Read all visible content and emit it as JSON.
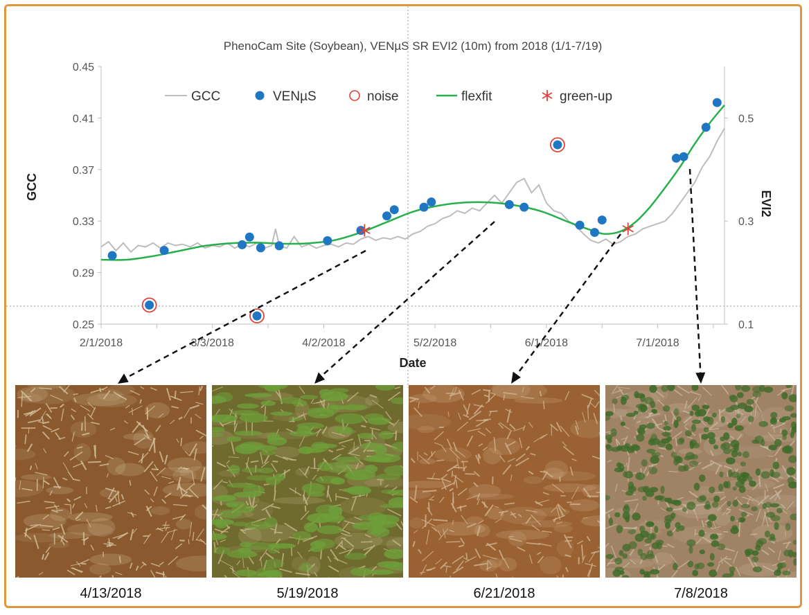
{
  "chart_data": {
    "type": "scatter",
    "title": "PhenoCam Site (Soybean), VENµS SR EVI2 (10m) from 2018 (1/1-7/19)",
    "xlabel": "Date",
    "ylabel": "GCC",
    "y2label": "EVI2",
    "xlim": [
      "2018-02-01",
      "2018-07-19"
    ],
    "x_ticks": [
      "2/1/2018",
      "3/3/2018",
      "4/2/2018",
      "5/2/2018",
      "6/1/2018",
      "7/1/2018"
    ],
    "ylim": [
      0.25,
      0.45
    ],
    "y_ticks": [
      "0.45",
      "0.41",
      "0.37",
      "0.33",
      "0.29",
      "0.25"
    ],
    "y2lim": [
      0.1,
      0.6
    ],
    "y2_ticks": [
      "0.5",
      "0.3",
      "0.1"
    ],
    "grid": false,
    "legend": [
      "GCC",
      "VENµS",
      "noise",
      "flexfit",
      "green-up"
    ],
    "legend_position": "top",
    "colors": {
      "gcc": "#bdbdbd",
      "venus": "#1f77c4",
      "noise": "#e0413b",
      "flexfit": "#25b04a",
      "greenup": "#e0413b",
      "arrows": "#111111"
    },
    "series": [
      {
        "name": "GCC",
        "axis": "left",
        "points": [
          [
            "2018-02-01",
            0.31
          ],
          [
            "2018-02-03",
            0.314
          ],
          [
            "2018-02-05",
            0.307
          ],
          [
            "2018-02-07",
            0.313
          ],
          [
            "2018-02-09",
            0.306
          ],
          [
            "2018-02-11",
            0.311
          ],
          [
            "2018-02-13",
            0.31
          ],
          [
            "2018-02-15",
            0.313
          ],
          [
            "2018-02-17",
            0.309
          ],
          [
            "2018-02-19",
            0.313
          ],
          [
            "2018-02-21",
            0.311
          ],
          [
            "2018-02-23",
            0.312
          ],
          [
            "2018-02-25",
            0.31
          ],
          [
            "2018-02-27",
            0.313
          ],
          [
            "2018-03-01",
            0.309
          ],
          [
            "2018-03-03",
            0.311
          ],
          [
            "2018-03-05",
            0.31
          ],
          [
            "2018-03-07",
            0.313
          ],
          [
            "2018-03-09",
            0.309
          ],
          [
            "2018-03-11",
            0.312
          ],
          [
            "2018-03-13",
            0.31
          ],
          [
            "2018-03-15",
            0.313
          ],
          [
            "2018-03-17",
            0.309
          ],
          [
            "2018-03-19",
            0.311
          ],
          [
            "2018-03-20",
            0.324
          ],
          [
            "2018-03-21",
            0.311
          ],
          [
            "2018-03-23",
            0.309
          ],
          [
            "2018-03-25",
            0.318
          ],
          [
            "2018-03-27",
            0.31
          ],
          [
            "2018-03-29",
            0.312
          ],
          [
            "2018-03-31",
            0.309
          ],
          [
            "2018-04-02",
            0.311
          ],
          [
            "2018-04-04",
            0.312
          ],
          [
            "2018-04-06",
            0.31
          ],
          [
            "2018-04-08",
            0.313
          ],
          [
            "2018-04-10",
            0.312
          ],
          [
            "2018-04-12",
            0.316
          ],
          [
            "2018-04-14",
            0.318
          ],
          [
            "2018-04-16",
            0.315
          ],
          [
            "2018-04-18",
            0.317
          ],
          [
            "2018-04-20",
            0.316
          ],
          [
            "2018-04-22",
            0.318
          ],
          [
            "2018-04-24",
            0.316
          ],
          [
            "2018-04-26",
            0.32
          ],
          [
            "2018-04-28",
            0.322
          ],
          [
            "2018-04-30",
            0.326
          ],
          [
            "2018-05-02",
            0.328
          ],
          [
            "2018-05-04",
            0.332
          ],
          [
            "2018-05-06",
            0.334
          ],
          [
            "2018-05-08",
            0.338
          ],
          [
            "2018-05-10",
            0.336
          ],
          [
            "2018-05-12",
            0.34
          ],
          [
            "2018-05-14",
            0.338
          ],
          [
            "2018-05-16",
            0.344
          ],
          [
            "2018-05-18",
            0.35
          ],
          [
            "2018-05-20",
            0.344
          ],
          [
            "2018-05-22",
            0.352
          ],
          [
            "2018-05-24",
            0.36
          ],
          [
            "2018-05-26",
            0.363
          ],
          [
            "2018-05-28",
            0.352
          ],
          [
            "2018-05-30",
            0.358
          ],
          [
            "2018-06-01",
            0.344
          ],
          [
            "2018-06-03",
            0.338
          ],
          [
            "2018-06-05",
            0.336
          ],
          [
            "2018-06-07",
            0.33
          ],
          [
            "2018-06-09",
            0.326
          ],
          [
            "2018-06-11",
            0.32
          ],
          [
            "2018-06-13",
            0.315
          ],
          [
            "2018-06-15",
            0.313
          ],
          [
            "2018-06-17",
            0.316
          ],
          [
            "2018-06-19",
            0.312
          ],
          [
            "2018-06-21",
            0.314
          ],
          [
            "2018-06-23",
            0.318
          ],
          [
            "2018-06-25",
            0.32
          ],
          [
            "2018-06-27",
            0.324
          ],
          [
            "2018-06-29",
            0.326
          ],
          [
            "2018-07-01",
            0.328
          ],
          [
            "2018-07-03",
            0.33
          ],
          [
            "2018-07-05",
            0.336
          ],
          [
            "2018-07-07",
            0.344
          ],
          [
            "2018-07-09",
            0.352
          ],
          [
            "2018-07-11",
            0.36
          ],
          [
            "2018-07-13",
            0.372
          ],
          [
            "2018-07-15",
            0.38
          ],
          [
            "2018-07-17",
            0.392
          ],
          [
            "2018-07-19",
            0.402
          ]
        ]
      },
      {
        "name": "VENµS",
        "axis": "right",
        "points": [
          [
            "2018-02-04",
            0.233
          ],
          [
            "2018-02-14",
            0.137
          ],
          [
            "2018-02-18",
            0.243
          ],
          [
            "2018-03-11",
            0.254
          ],
          [
            "2018-03-13",
            0.269
          ],
          [
            "2018-03-15",
            0.116
          ],
          [
            "2018-03-16",
            0.248
          ],
          [
            "2018-03-21",
            0.252
          ],
          [
            "2018-04-03",
            0.262
          ],
          [
            "2018-04-12",
            0.282
          ],
          [
            "2018-04-19",
            0.31
          ],
          [
            "2018-04-21",
            0.322
          ],
          [
            "2018-04-29",
            0.327
          ],
          [
            "2018-05-01",
            0.337
          ],
          [
            "2018-05-22",
            0.332
          ],
          [
            "2018-05-26",
            0.327
          ],
          [
            "2018-06-04",
            0.448
          ],
          [
            "2018-06-10",
            0.292
          ],
          [
            "2018-06-14",
            0.278
          ],
          [
            "2018-06-16",
            0.302
          ],
          [
            "2018-07-06",
            0.422
          ],
          [
            "2018-07-08",
            0.425
          ],
          [
            "2018-07-14",
            0.482
          ],
          [
            "2018-07-17",
            0.53
          ]
        ]
      },
      {
        "name": "noise",
        "axis": "right",
        "points": [
          [
            "2018-02-14",
            0.137
          ],
          [
            "2018-03-15",
            0.116
          ],
          [
            "2018-06-04",
            0.448
          ]
        ]
      },
      {
        "name": "flexfit",
        "axis": "right",
        "points": [
          [
            "2018-02-01",
            0.225
          ],
          [
            "2018-02-08",
            0.225
          ],
          [
            "2018-02-15",
            0.232
          ],
          [
            "2018-02-22",
            0.242
          ],
          [
            "2018-03-01",
            0.252
          ],
          [
            "2018-03-08",
            0.257
          ],
          [
            "2018-03-15",
            0.258
          ],
          [
            "2018-03-22",
            0.256
          ],
          [
            "2018-03-29",
            0.257
          ],
          [
            "2018-04-05",
            0.263
          ],
          [
            "2018-04-12",
            0.278
          ],
          [
            "2018-04-19",
            0.298
          ],
          [
            "2018-04-26",
            0.318
          ],
          [
            "2018-05-03",
            0.33
          ],
          [
            "2018-05-10",
            0.336
          ],
          [
            "2018-05-17",
            0.336
          ],
          [
            "2018-05-24",
            0.33
          ],
          [
            "2018-05-31",
            0.318
          ],
          [
            "2018-06-07",
            0.298
          ],
          [
            "2018-06-14",
            0.28
          ],
          [
            "2018-06-17",
            0.275
          ],
          [
            "2018-06-21",
            0.28
          ],
          [
            "2018-06-25",
            0.298
          ],
          [
            "2018-06-29",
            0.328
          ],
          [
            "2018-07-03",
            0.365
          ],
          [
            "2018-07-07",
            0.405
          ],
          [
            "2018-07-11",
            0.45
          ],
          [
            "2018-07-15",
            0.49
          ],
          [
            "2018-07-19",
            0.525
          ]
        ]
      },
      {
        "name": "green-up",
        "axis": "right",
        "points": [
          [
            "2018-04-13",
            0.282
          ],
          [
            "2018-06-23",
            0.285
          ]
        ]
      }
    ],
    "annotations": [
      {
        "from_date": "2018-04-11",
        "photo_index": 0
      },
      {
        "from_date": "2018-05-19",
        "photo_index": 1
      },
      {
        "from_date": "2018-06-21",
        "photo_index": 2
      },
      {
        "from_date": "2018-07-08",
        "photo_index": 3
      }
    ]
  },
  "photos": [
    {
      "caption": "4/13/2018",
      "ground": "#8a5a2e",
      "straw": "#d9c6a2",
      "green": null
    },
    {
      "caption": "5/19/2018",
      "ground": "#6f6a2e",
      "straw": "#c9bb8c",
      "green": "#6e9e3a"
    },
    {
      "caption": "6/21/2018",
      "ground": "#9a6233",
      "straw": "#d4b893",
      "green": null
    },
    {
      "caption": "7/8/2018",
      "ground": "#a08365",
      "straw": "#cbb9a0",
      "green": "#3f6b2a"
    }
  ]
}
